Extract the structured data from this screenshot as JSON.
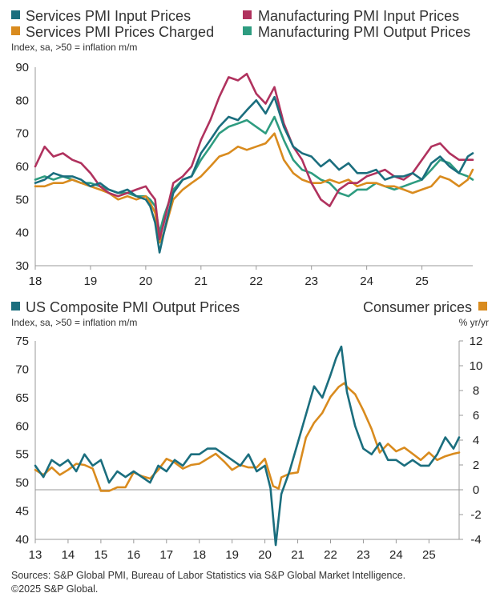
{
  "colors": {
    "teal": "#1b6e7e",
    "crimson": "#b0325e",
    "orange": "#d98b1e",
    "green": "#2e9c80"
  },
  "chart_data": [
    {
      "type": "line",
      "subtitle": "Index, sa, >50 = inflation m/m",
      "x_tick_labels": [
        "18",
        "19",
        "20",
        "21",
        "22",
        "23",
        "24",
        "25"
      ],
      "y_ticks": [
        30,
        40,
        50,
        60,
        70,
        80,
        90
      ],
      "ylim": [
        30,
        90
      ],
      "xlim": [
        2018.0,
        2025.92
      ],
      "grid": false,
      "series": [
        {
          "name": "Services PMI Input Prices",
          "color": "#1b6e7e",
          "x": [
            2018.0,
            2018.17,
            2018.33,
            2018.5,
            2018.67,
            2018.83,
            2019.0,
            2019.17,
            2019.33,
            2019.5,
            2019.67,
            2019.83,
            2020.0,
            2020.08,
            2020.17,
            2020.25,
            2020.33,
            2020.5,
            2020.67,
            2020.83,
            2021.0,
            2021.17,
            2021.33,
            2021.5,
            2021.67,
            2021.83,
            2022.0,
            2022.17,
            2022.33,
            2022.5,
            2022.67,
            2022.83,
            2023.0,
            2023.17,
            2023.33,
            2023.5,
            2023.67,
            2023.83,
            2024.0,
            2024.17,
            2024.33,
            2024.5,
            2024.67,
            2024.83,
            2025.0,
            2025.17,
            2025.33,
            2025.5,
            2025.67,
            2025.83,
            2025.92
          ],
          "values": [
            55,
            56,
            58,
            57,
            57,
            56,
            54,
            55,
            53,
            52,
            53,
            51,
            50,
            48,
            43,
            34,
            40,
            52,
            56,
            57,
            64,
            68,
            72,
            75,
            74,
            77,
            80,
            76,
            81,
            72,
            66,
            64,
            63,
            60,
            62,
            59,
            61,
            58,
            58,
            59,
            56,
            57,
            57,
            58,
            56,
            61,
            63,
            60,
            58,
            63,
            64
          ]
        },
        {
          "name": "Manufacturing PMI Input Prices",
          "color": "#b0325e",
          "x": [
            2018.0,
            2018.17,
            2018.33,
            2018.5,
            2018.67,
            2018.83,
            2019.0,
            2019.17,
            2019.33,
            2019.5,
            2019.67,
            2019.83,
            2020.0,
            2020.08,
            2020.17,
            2020.25,
            2020.33,
            2020.5,
            2020.67,
            2020.83,
            2021.0,
            2021.17,
            2021.33,
            2021.5,
            2021.67,
            2021.83,
            2022.0,
            2022.17,
            2022.33,
            2022.5,
            2022.67,
            2022.83,
            2023.0,
            2023.17,
            2023.33,
            2023.5,
            2023.67,
            2023.83,
            2024.0,
            2024.17,
            2024.33,
            2024.5,
            2024.67,
            2024.83,
            2025.0,
            2025.17,
            2025.33,
            2025.5,
            2025.67,
            2025.83,
            2025.92
          ],
          "values": [
            60,
            66,
            63,
            64,
            62,
            61,
            58,
            54,
            52,
            51,
            52,
            53,
            54,
            52,
            50,
            38,
            43,
            55,
            57,
            60,
            68,
            74,
            81,
            87,
            86,
            88,
            82,
            79,
            84,
            73,
            66,
            62,
            55,
            50,
            48,
            53,
            55,
            55,
            57,
            58,
            59,
            57,
            56,
            58,
            62,
            66,
            67,
            64,
            62,
            62,
            62
          ]
        },
        {
          "name": "Services PMI Prices Charged",
          "color": "#d98b1e",
          "x": [
            2018.0,
            2018.17,
            2018.33,
            2018.5,
            2018.67,
            2018.83,
            2019.0,
            2019.17,
            2019.33,
            2019.5,
            2019.67,
            2019.83,
            2020.0,
            2020.08,
            2020.17,
            2020.25,
            2020.33,
            2020.5,
            2020.67,
            2020.83,
            2021.0,
            2021.17,
            2021.33,
            2021.5,
            2021.67,
            2021.83,
            2022.0,
            2022.17,
            2022.33,
            2022.5,
            2022.67,
            2022.83,
            2023.0,
            2023.17,
            2023.33,
            2023.5,
            2023.67,
            2023.83,
            2024.0,
            2024.17,
            2024.33,
            2024.5,
            2024.67,
            2024.83,
            2025.0,
            2025.17,
            2025.33,
            2025.5,
            2025.67,
            2025.83,
            2025.92
          ],
          "values": [
            54,
            54,
            55,
            55,
            56,
            55,
            54,
            53,
            52,
            50,
            51,
            50,
            51,
            49,
            46,
            37,
            40,
            50,
            53,
            55,
            57,
            60,
            63,
            64,
            66,
            65,
            66,
            67,
            70,
            62,
            58,
            56,
            55,
            55,
            56,
            55,
            56,
            54,
            55,
            55,
            54,
            54,
            53,
            52,
            53,
            54,
            57,
            56,
            54,
            56,
            59
          ]
        },
        {
          "name": "Manufacturing PMI Output Prices",
          "color": "#2e9c80",
          "x": [
            2018.0,
            2018.17,
            2018.33,
            2018.5,
            2018.67,
            2018.83,
            2019.0,
            2019.17,
            2019.33,
            2019.5,
            2019.67,
            2019.83,
            2020.0,
            2020.08,
            2020.17,
            2020.25,
            2020.33,
            2020.5,
            2020.67,
            2020.83,
            2021.0,
            2021.17,
            2021.33,
            2021.5,
            2021.67,
            2021.83,
            2022.0,
            2022.17,
            2022.33,
            2022.5,
            2022.67,
            2022.83,
            2023.0,
            2023.17,
            2023.33,
            2023.5,
            2023.67,
            2023.83,
            2024.0,
            2024.17,
            2024.33,
            2024.5,
            2024.67,
            2024.83,
            2025.0,
            2025.17,
            2025.33,
            2025.5,
            2025.67,
            2025.83,
            2025.92
          ],
          "values": [
            56,
            57,
            56,
            57,
            56,
            55,
            55,
            54,
            53,
            52,
            52,
            51,
            51,
            50,
            48,
            40,
            45,
            53,
            56,
            57,
            62,
            66,
            70,
            72,
            73,
            74,
            72,
            70,
            75,
            68,
            62,
            59,
            58,
            56,
            55,
            52,
            51,
            53,
            53,
            55,
            54,
            53,
            54,
            55,
            56,
            59,
            62,
            61,
            58,
            57,
            56
          ]
        }
      ]
    },
    {
      "type": "line",
      "subtitle_left": "Index, sa, >50 = inflation m/m",
      "subtitle_right": "% yr/yr",
      "x_tick_labels": [
        "13",
        "14",
        "15",
        "16",
        "17",
        "18",
        "19",
        "20",
        "21",
        "22",
        "23",
        "24",
        "25"
      ],
      "y_ticks_left": [
        40,
        45,
        50,
        55,
        60,
        65,
        70,
        75
      ],
      "y_ticks_right": [
        -4,
        -2,
        0,
        2,
        4,
        6,
        8,
        10,
        12
      ],
      "ylim_left": [
        40,
        75
      ],
      "ylim_right": [
        -4,
        12
      ],
      "xlim": [
        2013.0,
        2025.92
      ],
      "grid": false,
      "series": [
        {
          "name": "US Composite PMI Output Prices",
          "axis": "left",
          "color": "#1b6e7e",
          "x": [
            2013.0,
            2013.25,
            2013.5,
            2013.75,
            2014.0,
            2014.25,
            2014.5,
            2014.75,
            2015.0,
            2015.25,
            2015.5,
            2015.75,
            2016.0,
            2016.25,
            2016.5,
            2016.75,
            2017.0,
            2017.25,
            2017.5,
            2017.75,
            2018.0,
            2018.25,
            2018.5,
            2018.75,
            2019.0,
            2019.25,
            2019.5,
            2019.75,
            2020.0,
            2020.17,
            2020.25,
            2020.33,
            2020.5,
            2020.75,
            2021.0,
            2021.25,
            2021.5,
            2021.75,
            2022.0,
            2022.17,
            2022.33,
            2022.5,
            2022.75,
            2023.0,
            2023.25,
            2023.5,
            2023.75,
            2024.0,
            2024.25,
            2024.5,
            2024.75,
            2025.0,
            2025.25,
            2025.5,
            2025.75,
            2025.92
          ],
          "values": [
            53,
            51,
            54,
            53,
            54,
            52,
            55,
            53,
            54,
            50,
            52,
            51,
            52,
            51,
            50,
            53,
            52,
            54,
            53,
            55,
            55,
            56,
            56,
            55,
            54,
            53,
            55,
            52,
            53,
            49,
            44,
            39,
            48,
            52,
            57,
            62,
            67,
            65,
            69,
            72,
            74,
            66,
            60,
            56,
            55,
            57,
            54,
            54,
            53,
            54,
            53,
            53,
            55,
            58,
            56,
            58
          ]
        },
        {
          "name": "Consumer prices",
          "axis": "right",
          "color": "#d98b1e",
          "x": [
            2013.0,
            2013.25,
            2013.5,
            2013.75,
            2014.0,
            2014.25,
            2014.5,
            2014.75,
            2015.0,
            2015.25,
            2015.5,
            2015.75,
            2016.0,
            2016.25,
            2016.5,
            2016.75,
            2017.0,
            2017.25,
            2017.5,
            2017.75,
            2018.0,
            2018.25,
            2018.5,
            2018.75,
            2019.0,
            2019.25,
            2019.5,
            2019.75,
            2020.0,
            2020.25,
            2020.42,
            2020.5,
            2020.75,
            2021.0,
            2021.25,
            2021.5,
            2021.75,
            2022.0,
            2022.25,
            2022.42,
            2022.5,
            2022.75,
            2023.0,
            2023.25,
            2023.5,
            2023.75,
            2024.0,
            2024.25,
            2024.5,
            2024.75,
            2025.0,
            2025.25,
            2025.5,
            2025.75,
            2025.92
          ],
          "values": [
            1.6,
            1.2,
            1.8,
            1.2,
            1.6,
            2.1,
            2.0,
            1.7,
            -0.1,
            -0.1,
            0.2,
            0.2,
            1.4,
            1.1,
            0.9,
            1.6,
            2.5,
            2.2,
            1.7,
            2.0,
            2.1,
            2.5,
            2.9,
            2.3,
            1.6,
            2.0,
            1.8,
            1.8,
            2.5,
            0.3,
            0.1,
            1.0,
            1.3,
            1.4,
            4.2,
            5.4,
            6.2,
            7.5,
            8.3,
            8.6,
            8.3,
            7.7,
            6.4,
            4.9,
            3.0,
            3.7,
            3.1,
            3.4,
            2.9,
            2.4,
            3.0,
            2.4,
            2.7,
            2.9,
            3.0
          ]
        }
      ]
    }
  ],
  "legend": {
    "services_input": "Services PMI Input Prices",
    "manufacturing_input": "Manufacturing PMI Input Prices",
    "services_charged": "Services PMI Prices Charged",
    "manufacturing_output": "Manufacturing PMI Output Prices",
    "composite_output": "US Composite PMI Output Prices",
    "consumer_prices": "Consumer prices"
  },
  "top_chart": {
    "subtitle": "Index, sa, >50 = inflation m/m"
  },
  "bottom_chart": {
    "subtitle_left": "Index, sa, >50 = inflation m/m",
    "subtitle_right": "% yr/yr"
  },
  "footer": {
    "sources": "Sources: S&P Global PMI, Bureau of Labor Statistics via S&P Global Market Intelligence.",
    "copyright": "©2025 S&P Global."
  }
}
